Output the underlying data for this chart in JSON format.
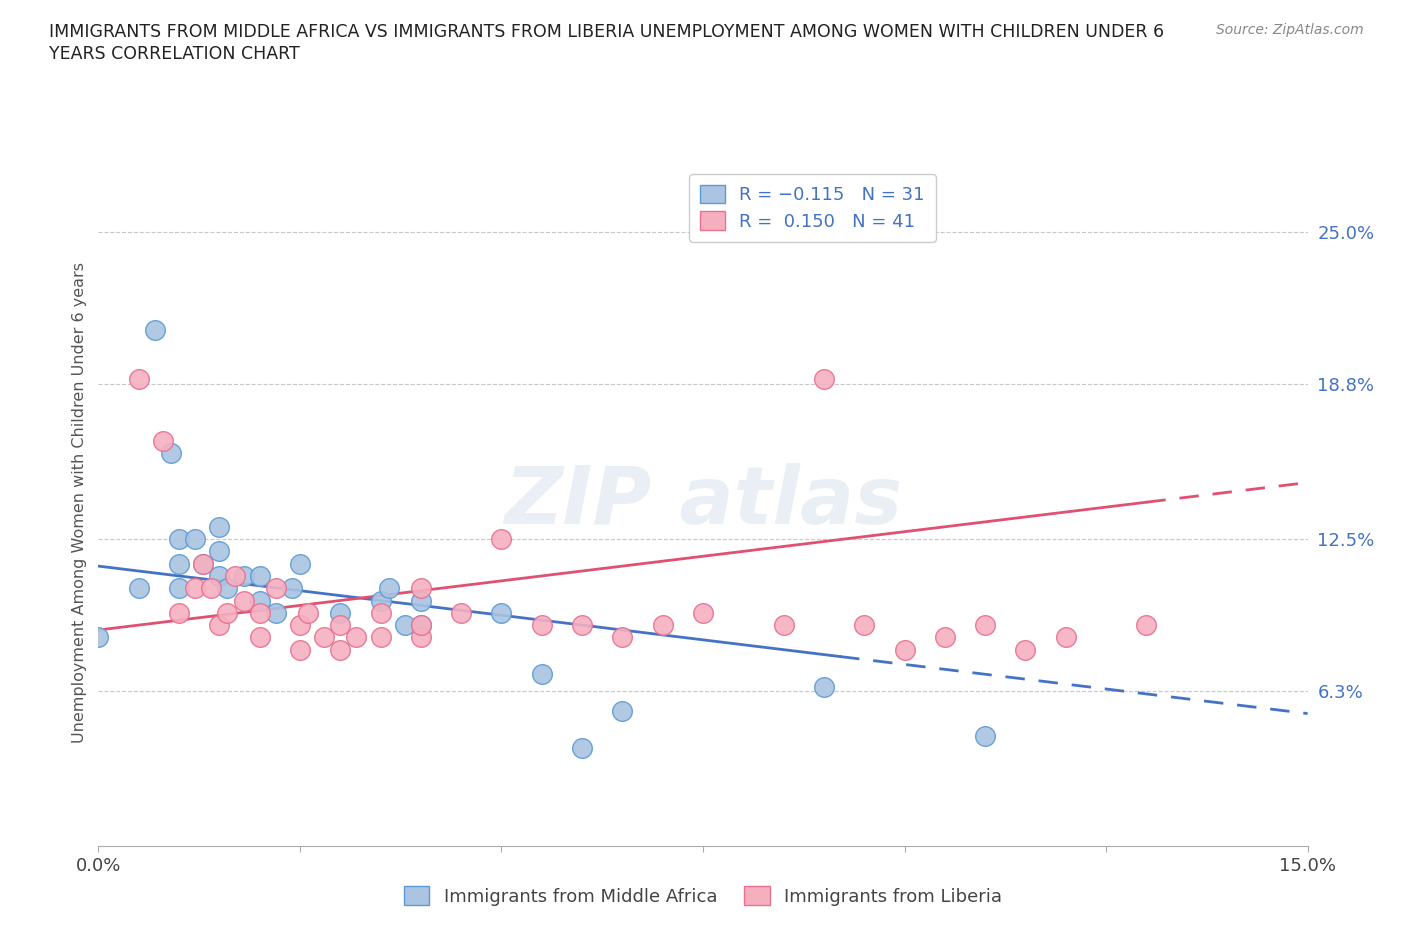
{
  "title_line1": "IMMIGRANTS FROM MIDDLE AFRICA VS IMMIGRANTS FROM LIBERIA UNEMPLOYMENT AMONG WOMEN WITH CHILDREN UNDER 6",
  "title_line2": "YEARS CORRELATION CHART",
  "source": "Source: ZipAtlas.com",
  "ylabel": "Unemployment Among Women with Children Under 6 years",
  "xlim": [
    0.0,
    0.15
  ],
  "ylim": [
    0.0,
    0.28
  ],
  "yticks_right": [
    0.063,
    0.125,
    0.188,
    0.25
  ],
  "ytick_labels_right": [
    "6.3%",
    "12.5%",
    "18.8%",
    "25.0%"
  ],
  "blue_color": "#aac4e2",
  "pink_color": "#f5b0c0",
  "blue_edge_color": "#5b9bd5",
  "pink_edge_color": "#e87090",
  "blue_line_color": "#4472c4",
  "pink_line_color": "#e05070",
  "bg_color": "#ffffff",
  "grid_color": "#c8c8c8",
  "series1_x": [
    0.0,
    0.005,
    0.007,
    0.009,
    0.01,
    0.01,
    0.01,
    0.012,
    0.013,
    0.015,
    0.015,
    0.015,
    0.016,
    0.018,
    0.02,
    0.02,
    0.022,
    0.024,
    0.025,
    0.03,
    0.035,
    0.036,
    0.038,
    0.04,
    0.04,
    0.05,
    0.055,
    0.06,
    0.065,
    0.09,
    0.11
  ],
  "series1_y": [
    0.085,
    0.105,
    0.21,
    0.16,
    0.105,
    0.115,
    0.125,
    0.125,
    0.115,
    0.11,
    0.12,
    0.13,
    0.105,
    0.11,
    0.1,
    0.11,
    0.095,
    0.105,
    0.115,
    0.095,
    0.1,
    0.105,
    0.09,
    0.09,
    0.1,
    0.095,
    0.07,
    0.04,
    0.055,
    0.065,
    0.045
  ],
  "series2_x": [
    0.005,
    0.008,
    0.01,
    0.012,
    0.013,
    0.014,
    0.015,
    0.016,
    0.017,
    0.018,
    0.02,
    0.02,
    0.022,
    0.025,
    0.025,
    0.026,
    0.028,
    0.03,
    0.03,
    0.032,
    0.035,
    0.035,
    0.04,
    0.04,
    0.04,
    0.045,
    0.05,
    0.055,
    0.06,
    0.065,
    0.07,
    0.075,
    0.085,
    0.09,
    0.095,
    0.1,
    0.105,
    0.11,
    0.115,
    0.12,
    0.13
  ],
  "series2_y": [
    0.19,
    0.165,
    0.095,
    0.105,
    0.115,
    0.105,
    0.09,
    0.095,
    0.11,
    0.1,
    0.085,
    0.095,
    0.105,
    0.08,
    0.09,
    0.095,
    0.085,
    0.08,
    0.09,
    0.085,
    0.085,
    0.095,
    0.085,
    0.09,
    0.105,
    0.095,
    0.125,
    0.09,
    0.09,
    0.085,
    0.09,
    0.095,
    0.09,
    0.19,
    0.09,
    0.08,
    0.085,
    0.09,
    0.08,
    0.085,
    0.09
  ],
  "trend1_x0": 0.0,
  "trend1_y0": 0.114,
  "trend1_x1": 0.15,
  "trend1_y1": 0.054,
  "trend1_solid_end": 0.092,
  "trend2_x0": 0.0,
  "trend2_y0": 0.088,
  "trend2_x1": 0.15,
  "trend2_y1": 0.148,
  "trend2_solid_end": 0.13
}
